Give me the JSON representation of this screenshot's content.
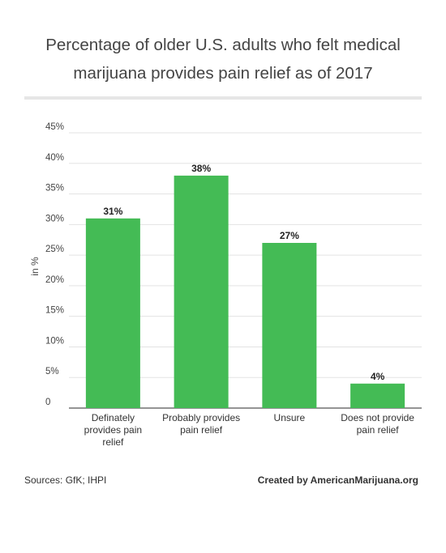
{
  "chart_data": {
    "type": "bar",
    "title": "Percentage of older U.S. adults who felt medical marijuana provides pain relief as of 2017",
    "ylabel": "in %",
    "xlabel": "",
    "categories": [
      "Definately provides pain relief",
      "Probably provides pain relief",
      "Unsure",
      "Does not provide pain relief"
    ],
    "category_lines": [
      [
        "Definately",
        "provides pain",
        "relief"
      ],
      [
        "Probably provides",
        "pain relief"
      ],
      [
        "Unsure"
      ],
      [
        "Does not provide",
        "pain relief"
      ]
    ],
    "values": [
      31,
      38,
      27,
      4
    ],
    "value_labels": [
      "31%",
      "38%",
      "27%",
      "4%"
    ],
    "yticks": [
      0,
      5,
      10,
      15,
      20,
      25,
      30,
      35,
      40,
      45
    ],
    "ytick_labels": [
      "0",
      "5%",
      "10%",
      "15%",
      "20%",
      "25%",
      "30%",
      "35%",
      "40%",
      "45%"
    ],
    "ylim": [
      0,
      45
    ],
    "grid": true,
    "legend": "none",
    "bar_color": "#44bb55"
  },
  "footer": {
    "source": "Sources: GfK; IHPI",
    "credit": "Created by AmericanMarijuana.org"
  }
}
